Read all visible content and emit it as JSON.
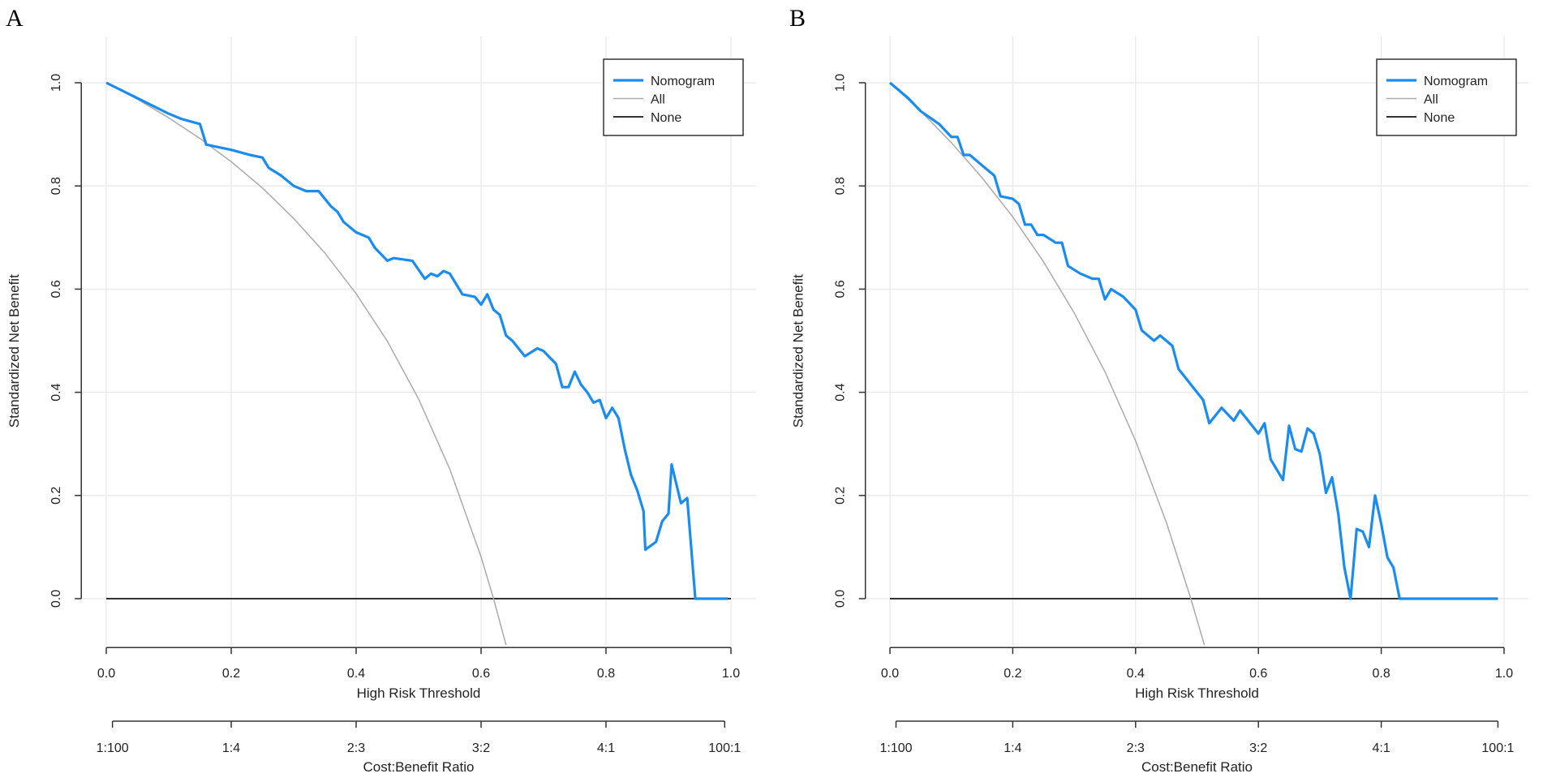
{
  "chart_data": [
    {
      "type": "line",
      "panel_label": "A",
      "xlabel": "High Risk Threshold",
      "ylabel": "Standardized Net Benefit",
      "xlim": [
        0,
        1
      ],
      "ylim": [
        -0.09,
        1.0
      ],
      "grid": true,
      "legend_position": "top-right",
      "x_ticks": [
        "0.0",
        "0.2",
        "0.4",
        "0.6",
        "0.8",
        "1.0"
      ],
      "y_ticks": [
        "0.0",
        "0.2",
        "0.4",
        "0.6",
        "0.8",
        "1.0"
      ],
      "secondary_axis": {
        "label": "Cost:Benefit Ratio",
        "ticks": [
          {
            "label": "1:100",
            "x": 0.0099
          },
          {
            "label": "1:4",
            "x": 0.2
          },
          {
            "label": "2:3",
            "x": 0.4
          },
          {
            "label": "3:2",
            "x": 0.6
          },
          {
            "label": "4:1",
            "x": 0.8
          },
          {
            "label": "100:1",
            "x": 0.99
          }
        ]
      },
      "series": [
        {
          "name": "Nomogram",
          "color": "#1a8cf0",
          "x": [
            0,
            0.05,
            0.1,
            0.12,
            0.15,
            0.16,
            0.2,
            0.23,
            0.25,
            0.26,
            0.28,
            0.3,
            0.32,
            0.34,
            0.36,
            0.37,
            0.38,
            0.4,
            0.42,
            0.43,
            0.45,
            0.46,
            0.49,
            0.51,
            0.52,
            0.53,
            0.54,
            0.55,
            0.56,
            0.57,
            0.59,
            0.6,
            0.61,
            0.62,
            0.63,
            0.64,
            0.65,
            0.67,
            0.69,
            0.7,
            0.72,
            0.73,
            0.74,
            0.75,
            0.76,
            0.77,
            0.78,
            0.79,
            0.8,
            0.81,
            0.82,
            0.83,
            0.84,
            0.85,
            0.86,
            0.863,
            0.88,
            0.89,
            0.9,
            0.905,
            0.92,
            0.93,
            0.943,
            0.995
          ],
          "y": [
            1.0,
            0.97,
            0.94,
            0.93,
            0.92,
            0.88,
            0.87,
            0.86,
            0.855,
            0.835,
            0.82,
            0.8,
            0.79,
            0.79,
            0.76,
            0.75,
            0.73,
            0.71,
            0.7,
            0.68,
            0.655,
            0.66,
            0.655,
            0.62,
            0.63,
            0.625,
            0.635,
            0.63,
            0.61,
            0.59,
            0.585,
            0.57,
            0.59,
            0.56,
            0.55,
            0.51,
            0.5,
            0.47,
            0.485,
            0.48,
            0.455,
            0.41,
            0.41,
            0.44,
            0.415,
            0.4,
            0.38,
            0.385,
            0.35,
            0.37,
            0.35,
            0.29,
            0.24,
            0.21,
            0.17,
            0.095,
            0.11,
            0.15,
            0.165,
            0.26,
            0.185,
            0.195,
            0.0,
            0.0
          ]
        },
        {
          "name": "All",
          "color": "#aaaaaa",
          "x": [
            0,
            0.05,
            0.1,
            0.15,
            0.2,
            0.25,
            0.3,
            0.35,
            0.4,
            0.45,
            0.5,
            0.55,
            0.6,
            0.62,
            0.64
          ],
          "y": [
            1.0,
            0.968,
            0.932,
            0.892,
            0.847,
            0.796,
            0.737,
            0.67,
            0.591,
            0.499,
            0.387,
            0.251,
            0.081,
            0.0,
            -0.09
          ]
        },
        {
          "name": "None",
          "color": "#333333",
          "x": [
            0,
            1
          ],
          "y": [
            0,
            0
          ]
        }
      ]
    },
    {
      "type": "line",
      "panel_label": "B",
      "xlabel": "High Risk Threshold",
      "ylabel": "Standardized Net Benefit",
      "xlim": [
        0,
        1
      ],
      "ylim": [
        -0.09,
        1.0
      ],
      "grid": true,
      "legend_position": "top-right",
      "x_ticks": [
        "0.0",
        "0.2",
        "0.4",
        "0.6",
        "0.8",
        "1.0"
      ],
      "y_ticks": [
        "0.0",
        "0.2",
        "0.4",
        "0.6",
        "0.8",
        "1.0"
      ],
      "secondary_axis": {
        "label": "Cost:Benefit Ratio",
        "ticks": [
          {
            "label": "1:100",
            "x": 0.0099
          },
          {
            "label": "1:4",
            "x": 0.2
          },
          {
            "label": "2:3",
            "x": 0.4
          },
          {
            "label": "3:2",
            "x": 0.6
          },
          {
            "label": "4:1",
            "x": 0.8
          },
          {
            "label": "100:1",
            "x": 0.99
          }
        ]
      },
      "series": [
        {
          "name": "Nomogram",
          "color": "#1a8cf0",
          "x": [
            0,
            0.03,
            0.05,
            0.08,
            0.1,
            0.11,
            0.12,
            0.13,
            0.15,
            0.17,
            0.18,
            0.2,
            0.21,
            0.22,
            0.23,
            0.24,
            0.25,
            0.27,
            0.28,
            0.29,
            0.31,
            0.33,
            0.34,
            0.35,
            0.36,
            0.38,
            0.4,
            0.41,
            0.43,
            0.44,
            0.46,
            0.47,
            0.48,
            0.5,
            0.51,
            0.52,
            0.54,
            0.56,
            0.57,
            0.6,
            0.61,
            0.62,
            0.64,
            0.65,
            0.66,
            0.67,
            0.68,
            0.69,
            0.7,
            0.71,
            0.72,
            0.73,
            0.74,
            0.75,
            0.76,
            0.77,
            0.78,
            0.79,
            0.8,
            0.81,
            0.82,
            0.83,
            0.99
          ],
          "y": [
            1.0,
            0.97,
            0.945,
            0.92,
            0.895,
            0.895,
            0.86,
            0.86,
            0.84,
            0.82,
            0.78,
            0.775,
            0.765,
            0.725,
            0.725,
            0.705,
            0.705,
            0.69,
            0.69,
            0.645,
            0.63,
            0.62,
            0.62,
            0.58,
            0.6,
            0.585,
            0.56,
            0.52,
            0.5,
            0.51,
            0.49,
            0.445,
            0.43,
            0.4,
            0.385,
            0.34,
            0.37,
            0.345,
            0.365,
            0.32,
            0.34,
            0.27,
            0.23,
            0.335,
            0.29,
            0.285,
            0.33,
            0.32,
            0.28,
            0.205,
            0.235,
            0.165,
            0.06,
            0.0,
            0.135,
            0.13,
            0.1,
            0.2,
            0.145,
            0.08,
            0.06,
            0.0,
            0.0
          ]
        },
        {
          "name": "All",
          "color": "#aaaaaa",
          "x": [
            0,
            0.05,
            0.1,
            0.15,
            0.2,
            0.25,
            0.3,
            0.35,
            0.4,
            0.45,
            0.49,
            0.5,
            0.512
          ],
          "y": [
            1.0,
            0.945,
            0.884,
            0.816,
            0.74,
            0.653,
            0.554,
            0.44,
            0.306,
            0.148,
            0.0,
            -0.041,
            -0.09
          ]
        },
        {
          "name": "None",
          "color": "#333333",
          "x": [
            0,
            0.99
          ],
          "y": [
            0,
            0
          ]
        }
      ]
    }
  ]
}
